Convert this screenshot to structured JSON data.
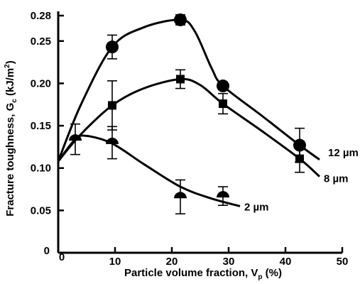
{
  "chart_data": {
    "type": "line",
    "xlabel": "Particle volume fraction, V",
    "xlabel_sub": "p",
    "xlabel_unit": " (%)",
    "ylabel": "Fracture toughness, G",
    "ylabel_sub": "c",
    "ylabel_unit": " (kJ/m",
    "ylabel_sup": "2",
    "ylabel_close": ")",
    "xlim": [
      0,
      50
    ],
    "ylim": [
      0,
      0.28
    ],
    "x_ticks": [
      0,
      10,
      20,
      30,
      40,
      50
    ],
    "x_tick_labels": [
      "0",
      "10",
      "20",
      "30",
      "40",
      "50"
    ],
    "y_ticks": [
      0,
      0.05,
      0.1,
      0.15,
      0.2,
      0.25,
      0.28
    ],
    "y_tick_labels": [
      "0",
      "0.05",
      "0.10",
      "0.15",
      "0.20",
      "0.25",
      "0.28"
    ],
    "grid": false,
    "legend": "inline labels at curve ends",
    "series": [
      {
        "name": "12 µm",
        "marker": "circle",
        "points": [
          {
            "x": 9.5,
            "y": 0.243,
            "err": 0.014
          },
          {
            "x": 21.5,
            "y": 0.275,
            "err": 0.006
          },
          {
            "x": 29.0,
            "y": 0.197,
            "err": 0.0
          },
          {
            "x": 42.5,
            "y": 0.127,
            "err": 0.02
          }
        ],
        "curve": [
          [
            0,
            0.108
          ],
          [
            4,
            0.175
          ],
          [
            9.5,
            0.243
          ],
          [
            15,
            0.266
          ],
          [
            21.5,
            0.275
          ],
          [
            24,
            0.262
          ],
          [
            27,
            0.218
          ],
          [
            29,
            0.197
          ],
          [
            36,
            0.161
          ],
          [
            42.5,
            0.127
          ],
          [
            46,
            0.11
          ]
        ]
      },
      {
        "name": "8 µm",
        "marker": "square",
        "points": [
          {
            "x": 9.5,
            "y": 0.174,
            "err": 0.029
          },
          {
            "x": 21.5,
            "y": 0.205,
            "err": 0.011
          },
          {
            "x": 29.0,
            "y": 0.176,
            "err": 0.012
          },
          {
            "x": 42.5,
            "y": 0.111,
            "err": 0.016
          }
        ],
        "curve": [
          [
            0,
            0.108
          ],
          [
            4,
            0.14
          ],
          [
            9.5,
            0.174
          ],
          [
            15,
            0.194
          ],
          [
            21.5,
            0.205
          ],
          [
            25,
            0.198
          ],
          [
            29,
            0.176
          ],
          [
            36,
            0.143
          ],
          [
            42.5,
            0.111
          ],
          [
            46,
            0.09
          ]
        ]
      },
      {
        "name": "2 µm",
        "marker": "half-circle",
        "points": [
          {
            "x": 3.0,
            "y": 0.134,
            "err": 0.018
          },
          {
            "x": 9.5,
            "y": 0.13,
            "err": 0.019
          },
          {
            "x": 21.5,
            "y": 0.066,
            "err": 0.02
          },
          {
            "x": 29.0,
            "y": 0.067,
            "err": 0.011
          }
        ],
        "curve": [
          [
            0,
            0.108
          ],
          [
            3,
            0.134
          ],
          [
            5,
            0.138
          ],
          [
            9.5,
            0.129
          ],
          [
            15,
            0.105
          ],
          [
            21.5,
            0.078
          ],
          [
            27,
            0.064
          ],
          [
            32,
            0.055
          ]
        ]
      }
    ]
  }
}
